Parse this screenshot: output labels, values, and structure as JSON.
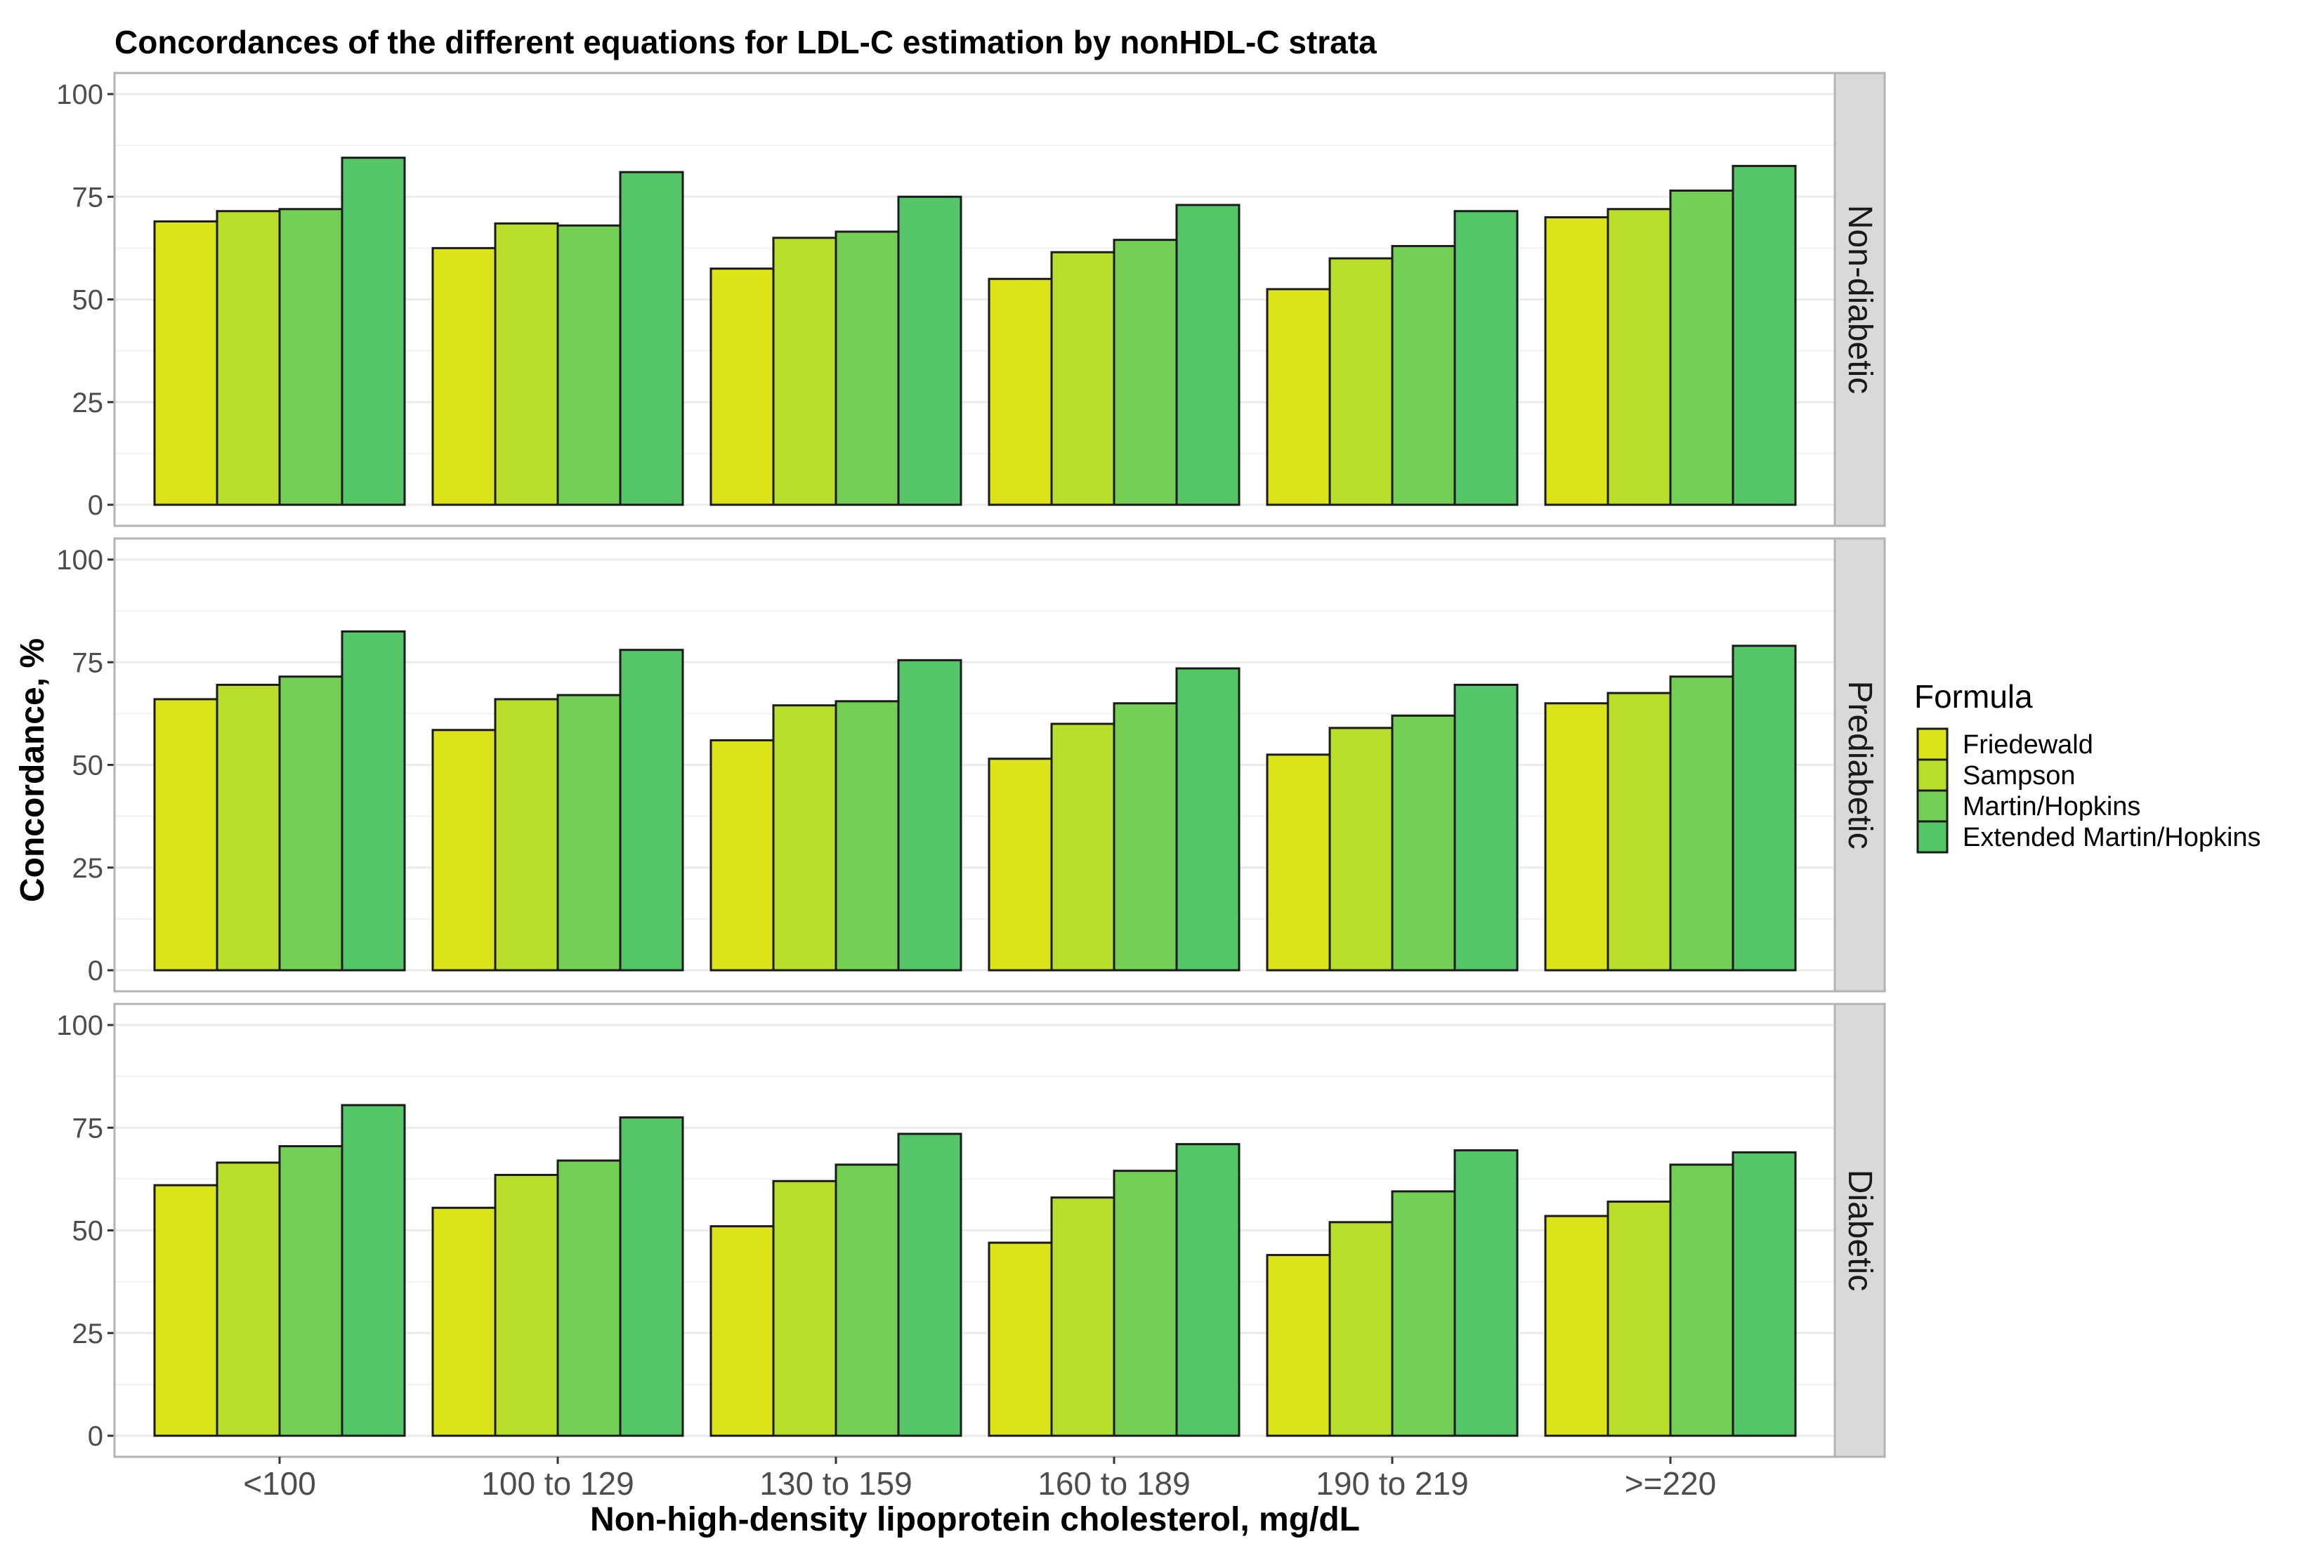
{
  "chart_data": {
    "type": "bar",
    "title": "Concordances of the different equations for LDL-C estimation by nonHDL-C strata",
    "xlabel": "Non-high-density lipoprotein cholesterol, mg/dL",
    "ylabel": "Concordance, %",
    "ylim": [
      0,
      100
    ],
    "yticks": [
      0,
      25,
      50,
      75,
      100
    ],
    "categories": [
      "<100",
      "100 to 129",
      "130 to 159",
      "160 to 189",
      "190 to 219",
      ">=220"
    ],
    "legend": {
      "title": "Formula",
      "position": "right",
      "entries": [
        "Friedewald",
        "Sampson",
        "Martin/Hopkins",
        "Extended Martin/Hopkins"
      ]
    },
    "colors": [
      "#dce319",
      "#b8de29",
      "#73d055",
      "#55c667"
    ],
    "panels": [
      {
        "strip": "Non-diabetic",
        "series": [
          {
            "name": "Friedewald",
            "values": [
              69,
              62.5,
              57.5,
              55,
              52.5,
              70
            ]
          },
          {
            "name": "Sampson",
            "values": [
              71.5,
              68.5,
              65,
              61.5,
              60,
              72
            ]
          },
          {
            "name": "Martin/Hopkins",
            "values": [
              72,
              68,
              66.5,
              64.5,
              63,
              76.5
            ]
          },
          {
            "name": "Extended Martin/Hopkins",
            "values": [
              84.5,
              81,
              75,
              73,
              71.5,
              82.5
            ]
          }
        ]
      },
      {
        "strip": "Prediabetic",
        "series": [
          {
            "name": "Friedewald",
            "values": [
              66,
              58.5,
              56,
              51.5,
              52.5,
              65
            ]
          },
          {
            "name": "Sampson",
            "values": [
              69.5,
              66,
              64.5,
              60,
              59,
              67.5
            ]
          },
          {
            "name": "Martin/Hopkins",
            "values": [
              71.5,
              67,
              65.5,
              65,
              62,
              71.5
            ]
          },
          {
            "name": "Extended Martin/Hopkins",
            "values": [
              82.5,
              78,
              75.5,
              73.5,
              69.5,
              79
            ]
          }
        ]
      },
      {
        "strip": "Diabetic",
        "series": [
          {
            "name": "Friedewald",
            "values": [
              61,
              55.5,
              51,
              47,
              44,
              53.5
            ]
          },
          {
            "name": "Sampson",
            "values": [
              66.5,
              63.5,
              62,
              58,
              52,
              57
            ]
          },
          {
            "name": "Martin/Hopkins",
            "values": [
              70.5,
              67,
              66,
              64.5,
              59.5,
              66
            ]
          },
          {
            "name": "Extended Martin/Hopkins",
            "values": [
              80.5,
              77.5,
              73.5,
              71,
              69.5,
              69
            ]
          }
        ]
      }
    ]
  }
}
